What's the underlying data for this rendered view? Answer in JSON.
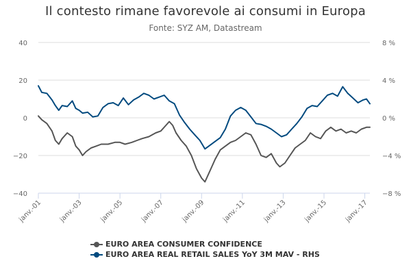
{
  "chart_data": {
    "type": "line",
    "title": "Il contesto rimane favorevole ai consumi in Europa",
    "subtitle": "Fonte: SYZ AM, Datastream",
    "x_ticks": [
      "janv.-01",
      "janv.-03",
      "janv.-05",
      "janv.-07",
      "janv.-09",
      "janv.-11",
      "janv.-13",
      "janv.-15",
      "janv.-17"
    ],
    "y_left": {
      "ticks": [
        "40",
        "20",
        "0",
        "−20",
        "−40"
      ],
      "lim": [
        -40,
        40
      ]
    },
    "y_right": {
      "ticks": [
        "8 %",
        "4 %",
        "0 %",
        "−4 %",
        "−8 %"
      ],
      "lim": [
        -8,
        8
      ]
    },
    "grid": "horizontal",
    "legend_position": "bottom",
    "colors": {
      "consumer_confidence": "#555555",
      "retail_sales": "#004a7f",
      "grid": "#dddddd",
      "axis": "#ccd6eb"
    },
    "x_start": "2001-01",
    "x_end": "2017-04",
    "series": [
      {
        "name": "EURO AREA CONSUMER CONFIDENCE",
        "axis": "left",
        "values": [
          [
            "2001-01",
            1
          ],
          [
            "2001-03",
            -1
          ],
          [
            "2001-06",
            -3
          ],
          [
            "2001-09",
            -7
          ],
          [
            "2001-11",
            -12
          ],
          [
            "2002-01",
            -14
          ],
          [
            "2002-03",
            -11
          ],
          [
            "2002-06",
            -8
          ],
          [
            "2002-09",
            -10
          ],
          [
            "2002-11",
            -15
          ],
          [
            "2003-01",
            -17
          ],
          [
            "2003-03",
            -20
          ],
          [
            "2003-05",
            -18
          ],
          [
            "2003-08",
            -16
          ],
          [
            "2003-11",
            -15
          ],
          [
            "2004-02",
            -14
          ],
          [
            "2004-06",
            -14
          ],
          [
            "2004-10",
            -13
          ],
          [
            "2005-01",
            -13
          ],
          [
            "2005-04",
            -14
          ],
          [
            "2005-08",
            -13
          ],
          [
            "2005-11",
            -12
          ],
          [
            "2006-02",
            -11
          ],
          [
            "2006-06",
            -10
          ],
          [
            "2006-10",
            -8
          ],
          [
            "2007-01",
            -7
          ],
          [
            "2007-04",
            -4
          ],
          [
            "2007-06",
            -2
          ],
          [
            "2007-08",
            -4
          ],
          [
            "2007-10",
            -8
          ],
          [
            "2008-01",
            -12
          ],
          [
            "2008-04",
            -15
          ],
          [
            "2008-07",
            -20
          ],
          [
            "2008-10",
            -27
          ],
          [
            "2009-01",
            -32
          ],
          [
            "2009-03",
            -34
          ],
          [
            "2009-06",
            -28
          ],
          [
            "2009-09",
            -22
          ],
          [
            "2009-12",
            -17
          ],
          [
            "2010-03",
            -15
          ],
          [
            "2010-06",
            -13
          ],
          [
            "2010-09",
            -12
          ],
          [
            "2010-12",
            -10
          ],
          [
            "2011-03",
            -8
          ],
          [
            "2011-06",
            -9
          ],
          [
            "2011-09",
            -14
          ],
          [
            "2011-12",
            -20
          ],
          [
            "2012-03",
            -21
          ],
          [
            "2012-06",
            -19
          ],
          [
            "2012-09",
            -24
          ],
          [
            "2012-11",
            -26
          ],
          [
            "2013-02",
            -24
          ],
          [
            "2013-05",
            -20
          ],
          [
            "2013-08",
            -16
          ],
          [
            "2013-11",
            -14
          ],
          [
            "2014-02",
            -12
          ],
          [
            "2014-05",
            -8
          ],
          [
            "2014-08",
            -10
          ],
          [
            "2014-11",
            -11
          ],
          [
            "2015-02",
            -7
          ],
          [
            "2015-05",
            -5
          ],
          [
            "2015-08",
            -7
          ],
          [
            "2015-11",
            -6
          ],
          [
            "2016-02",
            -8
          ],
          [
            "2016-05",
            -7
          ],
          [
            "2016-08",
            -8
          ],
          [
            "2016-11",
            -6
          ],
          [
            "2017-02",
            -5
          ],
          [
            "2017-04",
            -5
          ]
        ]
      },
      {
        "name": "EURO AREA REAL RETAIL SALES YoY 3M MAV - RHS",
        "axis": "right",
        "values": [
          [
            "2001-01",
            3.4
          ],
          [
            "2001-03",
            2.7
          ],
          [
            "2001-06",
            2.6
          ],
          [
            "2001-09",
            1.9
          ],
          [
            "2001-11",
            1.3
          ],
          [
            "2002-01",
            0.8
          ],
          [
            "2002-03",
            1.3
          ],
          [
            "2002-06",
            1.2
          ],
          [
            "2002-09",
            1.8
          ],
          [
            "2002-11",
            1.0
          ],
          [
            "2003-01",
            0.8
          ],
          [
            "2003-03",
            0.5
          ],
          [
            "2003-06",
            0.6
          ],
          [
            "2003-09",
            0.1
          ],
          [
            "2003-12",
            0.2
          ],
          [
            "2004-03",
            1.1
          ],
          [
            "2004-06",
            1.5
          ],
          [
            "2004-09",
            1.6
          ],
          [
            "2004-12",
            1.3
          ],
          [
            "2005-03",
            2.1
          ],
          [
            "2005-06",
            1.4
          ],
          [
            "2005-09",
            1.9
          ],
          [
            "2005-12",
            2.2
          ],
          [
            "2006-03",
            2.6
          ],
          [
            "2006-06",
            2.4
          ],
          [
            "2006-09",
            2.0
          ],
          [
            "2006-12",
            2.2
          ],
          [
            "2007-03",
            2.4
          ],
          [
            "2007-06",
            1.8
          ],
          [
            "2007-09",
            1.5
          ],
          [
            "2007-12",
            0.3
          ],
          [
            "2008-03",
            -0.5
          ],
          [
            "2008-06",
            -1.2
          ],
          [
            "2008-09",
            -1.8
          ],
          [
            "2008-12",
            -2.4
          ],
          [
            "2009-03",
            -3.3
          ],
          [
            "2009-06",
            -2.9
          ],
          [
            "2009-09",
            -2.5
          ],
          [
            "2009-12",
            -2.1
          ],
          [
            "2010-03",
            -1.2
          ],
          [
            "2010-06",
            0.2
          ],
          [
            "2010-09",
            0.8
          ],
          [
            "2010-12",
            1.1
          ],
          [
            "2011-03",
            0.8
          ],
          [
            "2011-06",
            0.1
          ],
          [
            "2011-09",
            -0.6
          ],
          [
            "2011-12",
            -0.7
          ],
          [
            "2012-03",
            -0.9
          ],
          [
            "2012-06",
            -1.2
          ],
          [
            "2012-09",
            -1.6
          ],
          [
            "2012-12",
            -2.0
          ],
          [
            "2013-03",
            -1.8
          ],
          [
            "2013-06",
            -1.2
          ],
          [
            "2013-09",
            -0.6
          ],
          [
            "2013-12",
            0.1
          ],
          [
            "2014-03",
            1.0
          ],
          [
            "2014-06",
            1.3
          ],
          [
            "2014-09",
            1.2
          ],
          [
            "2014-12",
            1.8
          ],
          [
            "2015-03",
            2.4
          ],
          [
            "2015-06",
            2.6
          ],
          [
            "2015-09",
            2.3
          ],
          [
            "2015-12",
            3.3
          ],
          [
            "2016-03",
            2.6
          ],
          [
            "2016-06",
            2.1
          ],
          [
            "2016-09",
            1.6
          ],
          [
            "2016-12",
            1.9
          ],
          [
            "2017-02",
            2.0
          ],
          [
            "2017-04",
            1.5
          ]
        ]
      }
    ]
  }
}
